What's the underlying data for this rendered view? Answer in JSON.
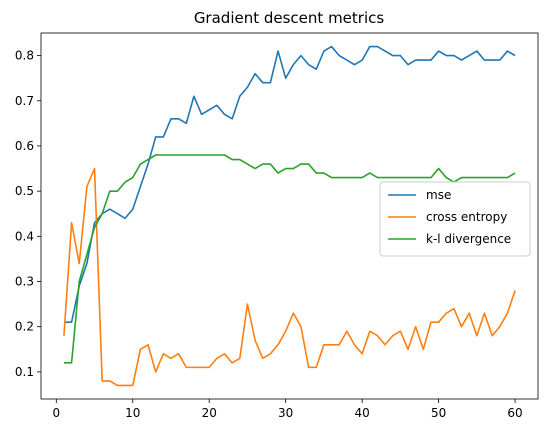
{
  "chart_data": {
    "type": "line",
    "title": "Gradient descent metrics",
    "xlabel": "",
    "ylabel": "",
    "xlim": [
      -2,
      63
    ],
    "ylim": [
      0.04,
      0.85
    ],
    "x_ticks": [
      0,
      10,
      20,
      30,
      40,
      50,
      60
    ],
    "y_ticks": [
      0.1,
      0.2,
      0.3,
      0.4,
      0.5,
      0.6,
      0.7,
      0.8
    ],
    "grid": false,
    "legend_position": "center-right",
    "x": [
      1,
      2,
      3,
      4,
      5,
      6,
      7,
      8,
      9,
      10,
      11,
      12,
      13,
      14,
      15,
      16,
      17,
      18,
      19,
      20,
      21,
      22,
      23,
      24,
      25,
      26,
      27,
      28,
      29,
      30,
      31,
      32,
      33,
      34,
      35,
      36,
      37,
      38,
      39,
      40,
      41,
      42,
      43,
      44,
      45,
      46,
      47,
      48,
      49,
      50,
      51,
      52,
      53,
      54,
      55,
      56,
      57,
      58,
      59,
      60
    ],
    "series": [
      {
        "name": "mse",
        "color": "#1f77b4",
        "values": [
          0.21,
          0.21,
          0.29,
          0.34,
          0.43,
          0.45,
          0.46,
          0.45,
          0.44,
          0.46,
          0.51,
          0.56,
          0.62,
          0.62,
          0.66,
          0.66,
          0.65,
          0.71,
          0.67,
          0.68,
          0.69,
          0.67,
          0.66,
          0.71,
          0.73,
          0.76,
          0.74,
          0.74,
          0.81,
          0.75,
          0.78,
          0.8,
          0.78,
          0.77,
          0.81,
          0.82,
          0.8,
          0.79,
          0.78,
          0.79,
          0.82,
          0.82,
          0.81,
          0.8,
          0.8,
          0.78,
          0.79,
          0.79,
          0.79,
          0.81,
          0.8,
          0.8,
          0.79,
          0.8,
          0.81,
          0.79,
          0.79,
          0.79,
          0.81,
          0.8
        ]
      },
      {
        "name": "cross entropy",
        "color": "#ff7f0e",
        "values": [
          0.18,
          0.43,
          0.34,
          0.51,
          0.55,
          0.08,
          0.08,
          0.07,
          0.07,
          0.07,
          0.15,
          0.16,
          0.1,
          0.14,
          0.13,
          0.14,
          0.11,
          0.11,
          0.11,
          0.11,
          0.13,
          0.14,
          0.12,
          0.13,
          0.25,
          0.17,
          0.13,
          0.14,
          0.16,
          0.19,
          0.23,
          0.2,
          0.11,
          0.11,
          0.16,
          0.16,
          0.16,
          0.19,
          0.16,
          0.14,
          0.19,
          0.18,
          0.16,
          0.18,
          0.19,
          0.15,
          0.2,
          0.15,
          0.21,
          0.21,
          0.23,
          0.24,
          0.2,
          0.23,
          0.18,
          0.23,
          0.18,
          0.2,
          0.23,
          0.28
        ]
      },
      {
        "name": "k-l divergence",
        "color": "#2ca02c",
        "values": [
          0.12,
          0.12,
          0.3,
          0.36,
          0.42,
          0.45,
          0.5,
          0.5,
          0.52,
          0.53,
          0.56,
          0.57,
          0.58,
          0.58,
          0.58,
          0.58,
          0.58,
          0.58,
          0.58,
          0.58,
          0.58,
          0.58,
          0.57,
          0.57,
          0.56,
          0.55,
          0.56,
          0.56,
          0.54,
          0.55,
          0.55,
          0.56,
          0.56,
          0.54,
          0.54,
          0.53,
          0.53,
          0.53,
          0.53,
          0.53,
          0.54,
          0.53,
          0.53,
          0.53,
          0.53,
          0.53,
          0.53,
          0.53,
          0.53,
          0.55,
          0.53,
          0.52,
          0.53,
          0.53,
          0.53,
          0.53,
          0.53,
          0.53,
          0.53,
          0.54
        ]
      }
    ]
  }
}
